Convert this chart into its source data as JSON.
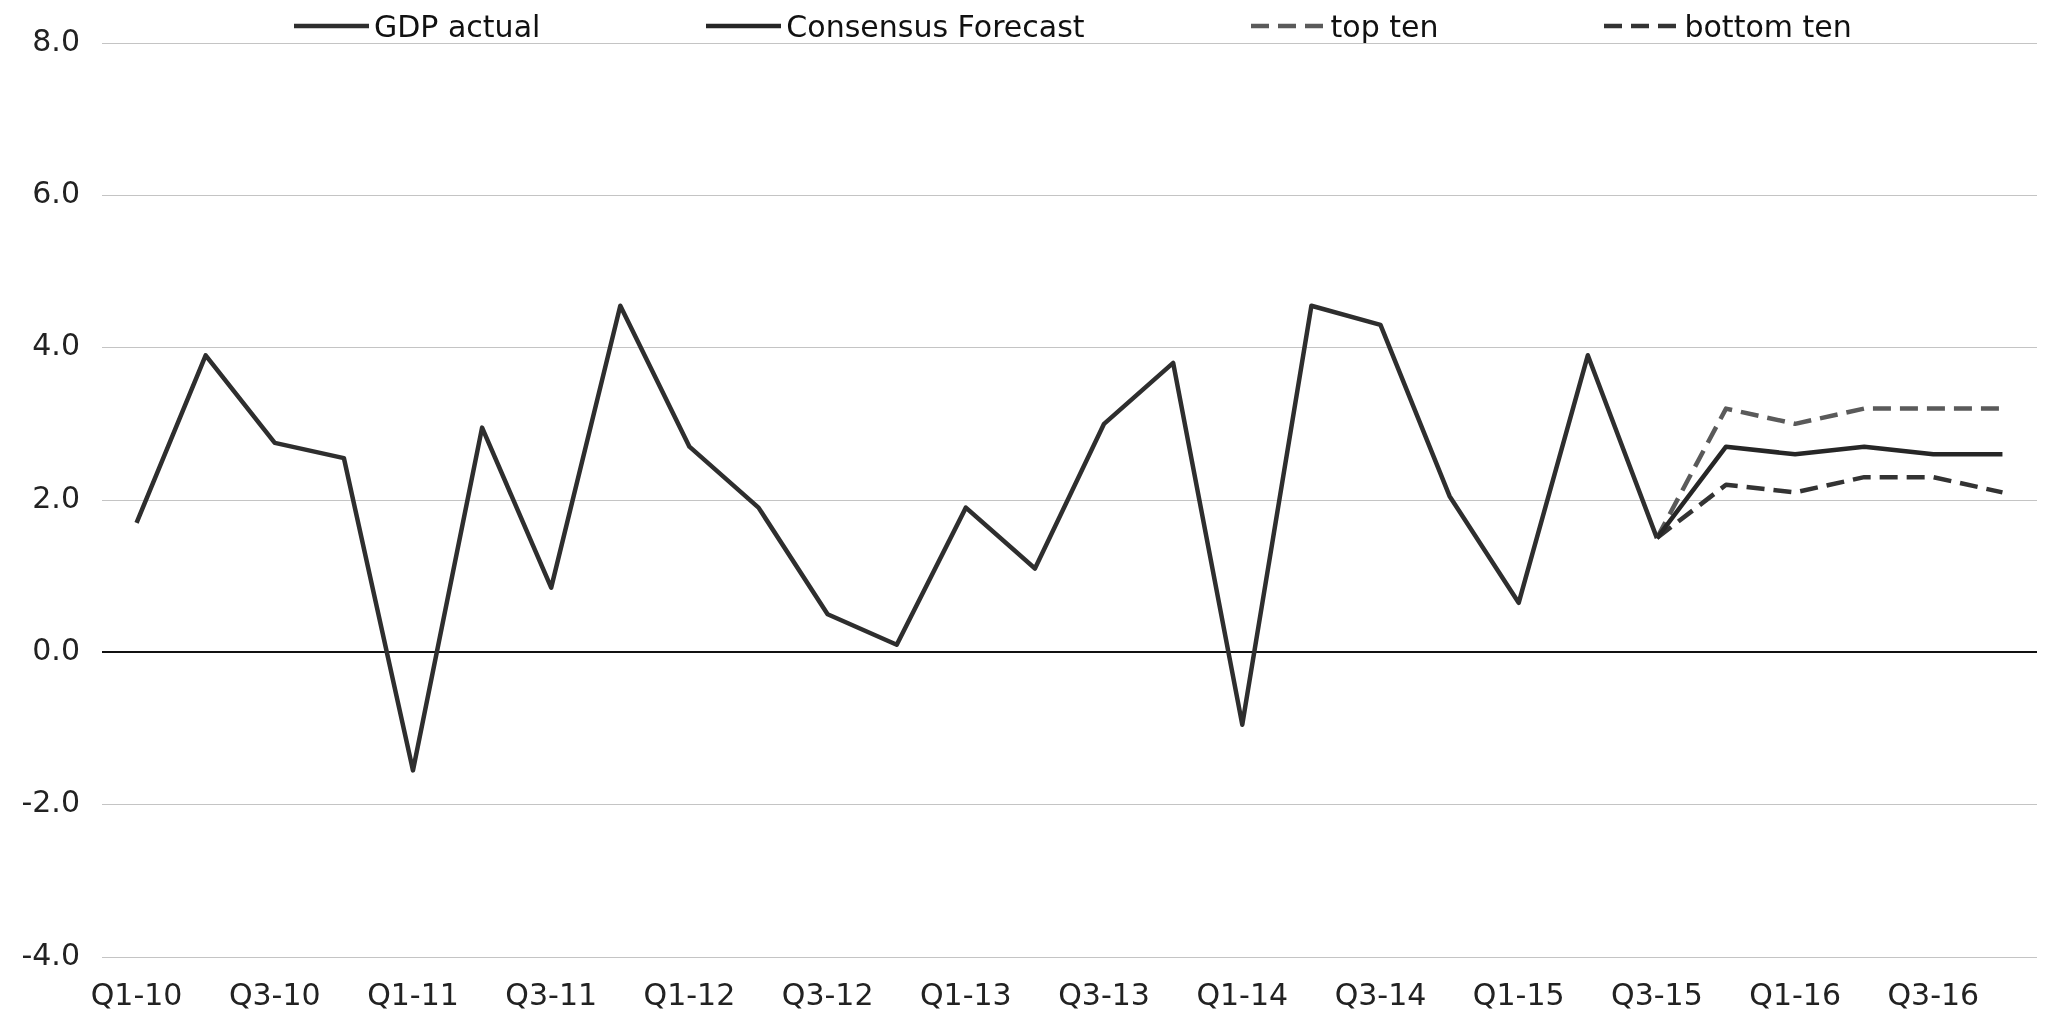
{
  "chart_data": {
    "type": "line",
    "categories": [
      "Q1-10",
      null,
      "Q3-10",
      null,
      "Q1-11",
      null,
      "Q3-11",
      null,
      "Q1-12",
      null,
      "Q3-12",
      null,
      "Q1-13",
      null,
      "Q3-13",
      null,
      "Q1-14",
      null,
      "Q3-14",
      null,
      "Q1-15",
      null,
      "Q3-15",
      null,
      "Q1-16",
      null,
      "Q3-16",
      null
    ],
    "series": [
      {
        "name": "GDP actual",
        "color": "#2e2e2e",
        "values": [
          1.7,
          3.9,
          2.75,
          2.55,
          -1.55,
          2.95,
          0.85,
          4.55,
          2.7,
          1.9,
          0.5,
          0.1,
          1.9,
          1.1,
          3.0,
          3.8,
          -0.95,
          4.55,
          4.3,
          2.05,
          0.65,
          3.9,
          1.5,
          null,
          null,
          null,
          null,
          null
        ]
      },
      {
        "name": "Consensus Forecast",
        "color": "#262626",
        "values": [
          null,
          null,
          null,
          null,
          null,
          null,
          null,
          null,
          null,
          null,
          null,
          null,
          null,
          null,
          null,
          null,
          null,
          null,
          null,
          null,
          null,
          null,
          1.5,
          2.7,
          2.6,
          2.7,
          2.6,
          2.6
        ]
      },
      {
        "name": "top ten",
        "color": "#5a5a5a",
        "line_style": "dashed",
        "values": [
          null,
          null,
          null,
          null,
          null,
          null,
          null,
          null,
          null,
          null,
          null,
          null,
          null,
          null,
          null,
          null,
          null,
          null,
          null,
          null,
          null,
          null,
          1.5,
          3.2,
          3.0,
          3.2,
          3.2,
          3.2
        ]
      },
      {
        "name": "bottom ten",
        "color": "#333333",
        "line_style": "dashed",
        "values": [
          null,
          null,
          null,
          null,
          null,
          null,
          null,
          null,
          null,
          null,
          null,
          null,
          null,
          null,
          null,
          null,
          null,
          null,
          null,
          null,
          null,
          null,
          1.5,
          2.2,
          2.1,
          2.3,
          2.3,
          2.1
        ]
      }
    ],
    "ylim": [
      -4,
      8
    ],
    "yticks": [
      {
        "value": -4,
        "label": "-4.0"
      },
      {
        "value": -2,
        "label": "-2.0"
      },
      {
        "value": 0,
        "label": "0.0"
      },
      {
        "value": 2,
        "label": "2.0"
      },
      {
        "value": 4,
        "label": "4.0"
      },
      {
        "value": 6,
        "label": "6.0"
      },
      {
        "value": 8,
        "label": "8.0"
      }
    ],
    "grid": "y",
    "legend": "top"
  }
}
